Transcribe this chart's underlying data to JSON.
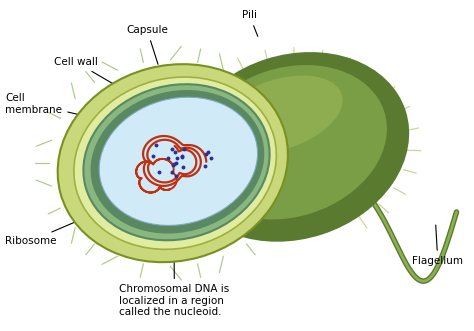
{
  "labels": {
    "pili": "Pili",
    "capsule": "Capsule",
    "cell_wall": "Cell wall",
    "cell_membrane": "Cell\nmembrane",
    "ribosome": "Ribosome",
    "chromosomal_dna": "Chromosomal DNA is\nlocalized in a region\ncalled the nucleoid.",
    "flagellum": "Flagellum"
  },
  "colors": {
    "background": "#ffffff",
    "outer_cell_dark": "#5a7a30",
    "outer_cell_medium": "#7a9e45",
    "outer_cell_light": "#9ab858",
    "capsule_fill": "#c8d87a",
    "cell_wall_fill": "#e0eca0",
    "membrane_fill": "#88b880",
    "membrane_dark": "#5a8860",
    "cytoplasm": "#d0eaf8",
    "dna_color": "#c03010",
    "ribosome_color": "#303090",
    "pili_color": "#b0c888",
    "flagellum_color": "#5a7a30",
    "flagellum_light": "#8ab050",
    "label_line": "#000000"
  },
  "figsize": [
    4.74,
    3.31
  ],
  "dpi": 100
}
